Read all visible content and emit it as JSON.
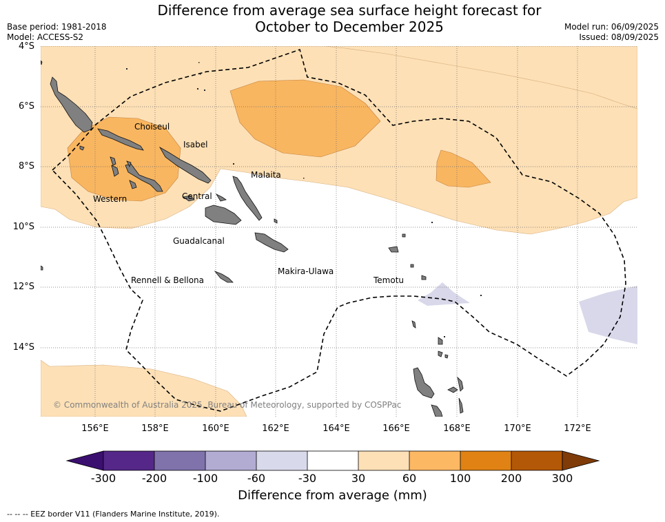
{
  "header": {
    "title_line1": "Difference from average sea surface height forecast for",
    "title_line2": "October to December 2025",
    "base_period": "Base period: 1981-2018",
    "model": "Model: ACCESS-S2",
    "model_run": "Model run: 06/09/2025",
    "issued": "Issued: 08/09/2025"
  },
  "map": {
    "lat_labels": [
      "4°S",
      "6°S",
      "8°S",
      "10°S",
      "12°S",
      "14°S"
    ],
    "lon_labels": [
      "156°E",
      "158°E",
      "160°E",
      "162°E",
      "164°E",
      "166°E",
      "168°E",
      "170°E",
      "172°E"
    ],
    "provinces": [
      "Choiseul",
      "Isabel",
      "Malaita",
      "Western",
      "Central",
      "Guadalcanal",
      "Makira-Ulawa",
      "Rennell & Bellona",
      "Temotu"
    ],
    "copyright": "© Commonwealth of Australia 2025, Bureau of Meteorology, supported by COSPPac",
    "colors": {
      "land": "#808080",
      "c30_60": "#fde0b6",
      "c60_100": "#f9b660",
      "cneg30_60": "#d8d8ea"
    }
  },
  "colorbar": {
    "title": "Difference from average (mm)",
    "ticks": [
      "-300",
      "-200",
      "-100",
      "-60",
      "-30",
      "30",
      "60",
      "100",
      "200",
      "300"
    ],
    "colors": [
      "#3b0f70",
      "#542788",
      "#8073ac",
      "#b2abd2",
      "#d8daeb",
      "#ffffff",
      "#fee0b6",
      "#fdb863",
      "#e08214",
      "#b35806",
      "#7f3b08"
    ]
  },
  "footer": {
    "legend": "--  --  -- EEZ border V11 (Flanders Marine Institute, 2019)."
  }
}
